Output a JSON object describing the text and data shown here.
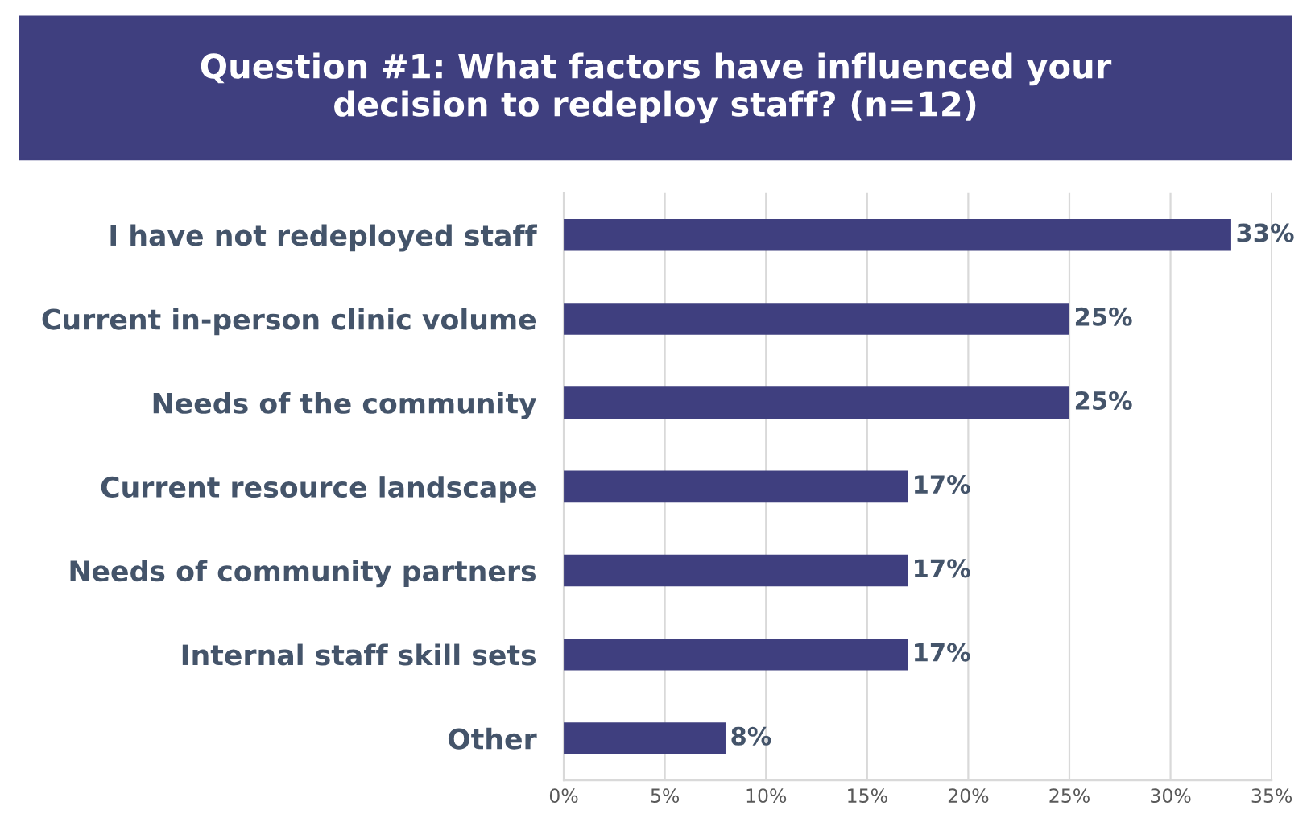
{
  "chart_data": {
    "type": "bar",
    "orientation": "horizontal",
    "title": "Question #1: What factors have influenced your\ndecision to redeploy staff? (n=12)",
    "categories": [
      "I have not redeployed staff",
      "Current in-person clinic volume",
      "Needs of the community",
      "Current resource landscape",
      "Needs of community partners",
      "Internal staff skill sets",
      "Other"
    ],
    "values": [
      33,
      25,
      25,
      17,
      17,
      17,
      8
    ],
    "color": "#3f3f7f",
    "value_labels": [
      "33%",
      "25%",
      "25%",
      "17%",
      "17%",
      "17%",
      "8%"
    ],
    "xlim": [
      0,
      35
    ],
    "xticks": [
      {
        "value": 0,
        "label": "0%"
      },
      {
        "value": 5,
        "label": "5%"
      },
      {
        "value": 10,
        "label": "10%"
      },
      {
        "value": 15,
        "label": "15%"
      },
      {
        "value": 20,
        "label": "20%"
      },
      {
        "value": 25,
        "label": "25%"
      },
      {
        "value": 30,
        "label": "30%"
      },
      {
        "value": 35,
        "label": "35%"
      }
    ],
    "grid": "x"
  }
}
